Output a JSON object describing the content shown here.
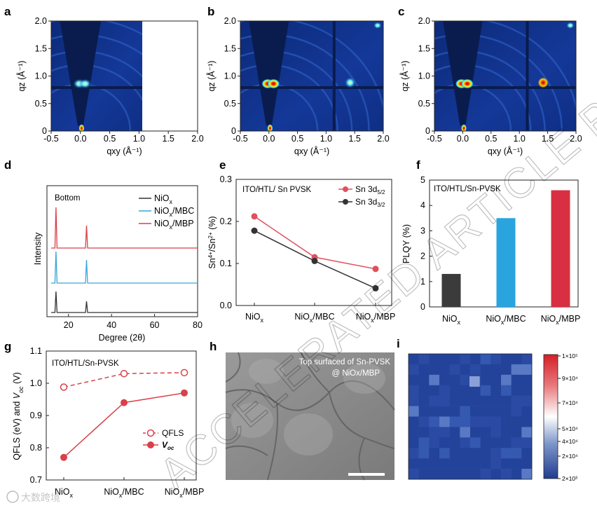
{
  "panels": {
    "a": {
      "letter": "a",
      "xlabel": "qxy (Å⁻¹)",
      "ylabel": "qz (Å⁻¹)"
    },
    "b": {
      "letter": "b",
      "xlabel": "qxy (Å⁻¹)",
      "ylabel": "qz (Å⁻¹)"
    },
    "c": {
      "letter": "c",
      "xlabel": "qxy (Å⁻¹)",
      "ylabel": "qz (Å⁻¹)"
    },
    "d": {
      "letter": "d"
    },
    "e": {
      "letter": "e"
    },
    "f": {
      "letter": "f"
    },
    "g": {
      "letter": "g"
    },
    "h": {
      "letter": "h",
      "caption_line1": "Top surfaced of Sn-PVSK",
      "caption_line2": "@ NiOx/MBP"
    },
    "i": {
      "letter": "i"
    }
  },
  "watermark": {
    "text": "ACCELERATED ARTICLE PREVIEW",
    "logo_text": "大数跨境"
  },
  "colors": {
    "black": "#333333",
    "blue": "#3aa6d8",
    "red": "#d8414a",
    "pink": "#e0505e",
    "bar_black": "#3b3b3b",
    "bar_blue": "#2aa4de",
    "bar_red": "#d83042",
    "map_dark": "#0b1f55",
    "map_blue": "#1c3fa0"
  },
  "chart_data": [
    {
      "id": "a",
      "type": "heatmap",
      "xlabel": "qxy (Å⁻¹)",
      "ylabel": "qz (Å⁻¹)",
      "xlim": [
        -0.5,
        2.0
      ],
      "ylim": [
        0,
        2.0
      ],
      "xticks": [
        "-0.5",
        "0.0",
        "0.5",
        "1.0",
        "1.5",
        "2.0"
      ],
      "yticks": [
        "0",
        "0.5",
        "1.0",
        "1.5",
        "2.0"
      ]
    },
    {
      "id": "b",
      "type": "heatmap",
      "xlabel": "qxy (Å⁻¹)",
      "ylabel": "qz (Å⁻¹)",
      "xlim": [
        -0.5,
        2.0
      ],
      "ylim": [
        0,
        2.0
      ],
      "xticks": [
        "-0.5",
        "0.0",
        "0.5",
        "1.0",
        "1.5",
        "2.0"
      ],
      "yticks": [
        "0",
        "0.5",
        "1.0",
        "1.5",
        "2.0"
      ]
    },
    {
      "id": "c",
      "type": "heatmap",
      "xlabel": "qxy (Å⁻¹)",
      "ylabel": "qz (Å⁻¹)",
      "xlim": [
        -0.5,
        2.0
      ],
      "ylim": [
        0,
        2.0
      ],
      "xticks": [
        "-0.5",
        "0.0",
        "0.5",
        "1.0",
        "1.5",
        "2.0"
      ],
      "yticks": [
        "0",
        "0.5",
        "1.0",
        "1.5",
        "2.0"
      ]
    },
    {
      "id": "d",
      "type": "line",
      "annotation": "Bottom",
      "xlabel": "Degree (2θ)",
      "ylabel": "Intensity",
      "xlim": [
        10,
        80
      ],
      "xticks": [
        "20",
        "40",
        "60",
        "80"
      ],
      "series": [
        {
          "name": "NiOx",
          "peaks": [
            14.2,
            28.4
          ]
        },
        {
          "name": "NiOx/MBC",
          "peaks": [
            14.2,
            28.4
          ]
        },
        {
          "name": "NiOx/MBP",
          "peaks": [
            14.2,
            28.4
          ]
        }
      ]
    },
    {
      "id": "e",
      "type": "line",
      "annotation": "ITO/HTL/ Sn PVSK",
      "ylabel": "Sn4+/Sn2+ (%)",
      "ylim": [
        0,
        0.3
      ],
      "yticks": [
        "0.0",
        "0.1",
        "0.2",
        "0.3"
      ],
      "categories": [
        "NiOx",
        "NiOx/MBC",
        "NiOx/MBP"
      ],
      "series": [
        {
          "name": "Sn 3d5/2",
          "values": [
            0.212,
            0.115,
            0.087
          ]
        },
        {
          "name": "Sn 3d3/2",
          "values": [
            0.178,
            0.106,
            0.041
          ]
        }
      ]
    },
    {
      "id": "f",
      "type": "bar",
      "annotation": "ITO/HTL/Sn-PVSK",
      "ylabel": "PLQY (%)",
      "ylim": [
        0,
        5
      ],
      "yticks": [
        "0",
        "1",
        "2",
        "3",
        "4",
        "5"
      ],
      "categories": [
        "NiOx",
        "NiOx/MBC",
        "NiOx/MBP"
      ],
      "values": [
        1.3,
        3.5,
        4.6
      ]
    },
    {
      "id": "g",
      "type": "line",
      "annotation": "ITO/HTL/Sn-PVSK",
      "ylabel": "QFLS (eV) and Voc (V)",
      "ylim": [
        0.7,
        1.1
      ],
      "yticks": [
        "0.7",
        "0.8",
        "0.9",
        "1.0",
        "1.1"
      ],
      "categories": [
        "NiOx",
        "NiOx/MBC",
        "NiOx/MBP"
      ],
      "series": [
        {
          "name": "QFLS",
          "values": [
            0.988,
            1.03,
            1.033
          ]
        },
        {
          "name": "Voc",
          "values": [
            0.77,
            0.94,
            0.97
          ]
        }
      ]
    },
    {
      "id": "i",
      "type": "heatmap",
      "colorbar_ticks": [
        "1×10⁵",
        "9×10⁴",
        "7×10⁴",
        "5×10⁴",
        "4×10⁴",
        "2×10⁴",
        "2×10³"
      ]
    }
  ]
}
